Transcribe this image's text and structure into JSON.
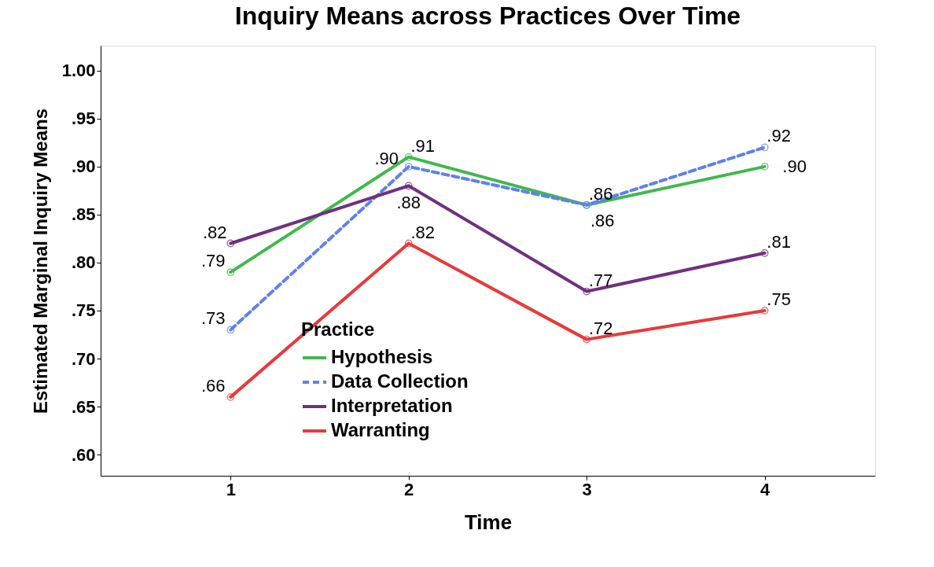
{
  "chart_data": {
    "type": "line",
    "title": "Inquiry Means across Practices Over Time",
    "xlabel": "Time",
    "ylabel": "Estimated Marginal Inquiry Means",
    "legend_title": "Practice",
    "legend": "bottom",
    "marker": "circle",
    "grid": false,
    "categories": [
      "1",
      "2",
      "3",
      "4"
    ],
    "ylim": [
      0.578,
      1.026
    ],
    "yticks": [
      {
        "value": 0.6,
        "label": ".60"
      },
      {
        "value": 0.65,
        "label": ".65"
      },
      {
        "value": 0.7,
        "label": ".70"
      },
      {
        "value": 0.75,
        "label": ".75"
      },
      {
        "value": 0.8,
        "label": ".80"
      },
      {
        "value": 0.85,
        "label": ".85"
      },
      {
        "value": 0.9,
        "label": ".90"
      },
      {
        "value": 0.95,
        "label": ".95"
      },
      {
        "value": 1.0,
        "label": "1.00"
      }
    ],
    "series": [
      {
        "name": "Hypothesis",
        "color": "#40b84c",
        "line_style": "solid",
        "values": [
          0.79,
          0.91,
          0.86,
          0.9
        ],
        "value_labels": [
          ".79",
          ".91",
          ".86",
          ".90"
        ]
      },
      {
        "name": "Data Collection",
        "color": "#6080f0",
        "line_style": "dashed",
        "values": [
          0.73,
          0.9,
          0.86,
          0.92
        ],
        "value_labels": [
          ".73",
          ".90",
          ".86",
          ".92"
        ]
      },
      {
        "name": "Interpretation",
        "color": "#70307f",
        "line_style": "solid",
        "values": [
          0.82,
          0.88,
          0.77,
          0.81
        ],
        "value_labels": [
          ".82",
          ".88",
          ".77",
          ".81"
        ]
      },
      {
        "name": "Warranting",
        "color": "#e8393c",
        "line_style": "solid",
        "values": [
          0.66,
          0.82,
          0.72,
          0.75
        ],
        "value_labels": [
          ".66",
          ".82",
          ".72",
          ".75"
        ]
      }
    ]
  }
}
